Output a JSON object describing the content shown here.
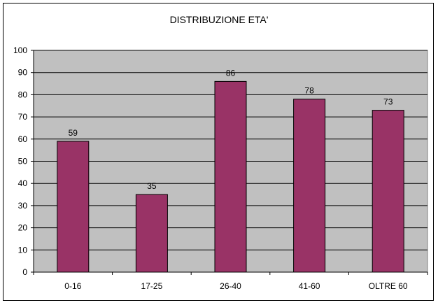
{
  "chart_data": {
    "type": "bar",
    "title": "DISTRIBUZIONE ETA'",
    "categories": [
      "0-16",
      "17-25",
      "26-40",
      "41-60",
      "OLTRE 60"
    ],
    "values": [
      59,
      35,
      86,
      78,
      73
    ],
    "xlabel": "",
    "ylabel": "",
    "ylim": [
      0,
      100
    ],
    "ytick_step": 10,
    "grid": true,
    "legend": "none",
    "plot_background": "#c0c0c0",
    "bar_color": "#993366"
  }
}
